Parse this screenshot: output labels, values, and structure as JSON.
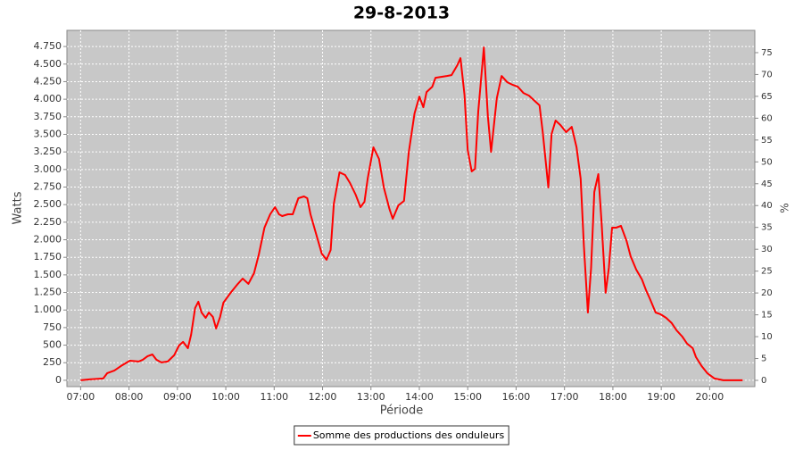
{
  "chart_data": {
    "type": "line",
    "title": "29-8-2013",
    "x_label": "Période",
    "y_label": "Watts",
    "y2_label": "%",
    "xlim": [
      403,
      1256
    ],
    "ylim": [
      -90,
      4980
    ],
    "y2lim": [
      -1.43,
      80.1
    ],
    "xticks": [
      {
        "value": 420,
        "label": "07:00"
      },
      {
        "value": 480,
        "label": "08:00"
      },
      {
        "value": 540,
        "label": "09:00"
      },
      {
        "value": 600,
        "label": "10:00"
      },
      {
        "value": 660,
        "label": "11:00"
      },
      {
        "value": 720,
        "label": "12:00"
      },
      {
        "value": 780,
        "label": "13:00"
      },
      {
        "value": 840,
        "label": "14:00"
      },
      {
        "value": 900,
        "label": "15:00"
      },
      {
        "value": 960,
        "label": "16:00"
      },
      {
        "value": 1020,
        "label": "17:00"
      },
      {
        "value": 1080,
        "label": "18:00"
      },
      {
        "value": 1140,
        "label": "19:00"
      },
      {
        "value": 1200,
        "label": "20:00"
      }
    ],
    "yticks": [
      0,
      250,
      500,
      750,
      {
        "value": 1000,
        "label": "1.000"
      },
      {
        "value": 1250,
        "label": "1.250"
      },
      {
        "value": 1500,
        "label": "1.500"
      },
      {
        "value": 1750,
        "label": "1.750"
      },
      {
        "value": 2000,
        "label": "2.000"
      },
      {
        "value": 2250,
        "label": "2.250"
      },
      {
        "value": 2500,
        "label": "2.500"
      },
      {
        "value": 2750,
        "label": "2.750"
      },
      {
        "value": 3000,
        "label": "3.000"
      },
      {
        "value": 3250,
        "label": "3.250"
      },
      {
        "value": 3500,
        "label": "3.500"
      },
      {
        "value": 3750,
        "label": "3.750"
      },
      {
        "value": 4000,
        "label": "4.000"
      },
      {
        "value": 4250,
        "label": "4.250"
      },
      {
        "value": 4500,
        "label": "4.500"
      },
      {
        "value": 4750,
        "label": "4.750"
      }
    ],
    "y2ticks": [
      0,
      5,
      10,
      15,
      20,
      25,
      30,
      35,
      40,
      45,
      50,
      55,
      60,
      65,
      70,
      75
    ],
    "grid": true,
    "x": [
      420,
      431,
      448,
      453,
      462,
      470,
      481,
      492,
      497,
      503,
      509,
      514,
      520,
      528,
      536,
      542,
      547,
      553,
      557,
      562,
      566,
      570,
      575,
      579,
      584,
      588,
      593,
      597,
      606,
      615,
      621,
      628,
      635,
      641,
      648,
      655,
      661,
      666,
      670,
      677,
      683,
      690,
      697,
      701,
      705,
      712,
      719,
      725,
      730,
      734,
      741,
      748,
      754,
      761,
      767,
      772,
      776,
      783,
      790,
      796,
      803,
      807,
      814,
      821,
      827,
      834,
      840,
      845,
      849,
      856,
      860,
      867,
      874,
      880,
      887,
      891,
      896,
      900,
      905,
      909,
      913,
      920,
      925,
      929,
      936,
      942,
      949,
      956,
      962,
      969,
      976,
      982,
      989,
      993,
      1000,
      1004,
      1009,
      1015,
      1022,
      1029,
      1035,
      1040,
      1044,
      1049,
      1053,
      1057,
      1062,
      1066,
      1071,
      1075,
      1079,
      1084,
      1090,
      1097,
      1102,
      1109,
      1116,
      1121,
      1126,
      1133,
      1139,
      1146,
      1153,
      1159,
      1166,
      1172,
      1179,
      1183,
      1190,
      1197,
      1206,
      1217,
      1241
    ],
    "series": [
      {
        "name": "Somme des productions des onduleurs",
        "color": "#ff0000",
        "values": [
          0,
          13,
          25,
          102,
          140,
          203,
          279,
          267,
          292,
          343,
          368,
          292,
          254,
          267,
          356,
          495,
          546,
          457,
          648,
          1029,
          1118,
          965,
          889,
          965,
          902,
          737,
          902,
          1105,
          1245,
          1372,
          1448,
          1372,
          1524,
          1791,
          2172,
          2362,
          2464,
          2362,
          2337,
          2362,
          2362,
          2591,
          2616,
          2591,
          2362,
          2083,
          1803,
          1715,
          1854,
          2515,
          2959,
          2921,
          2807,
          2642,
          2464,
          2540,
          2870,
          3315,
          3150,
          2743,
          2438,
          2299,
          2489,
          2553,
          3251,
          3797,
          4039,
          3886,
          4102,
          4178,
          4305,
          4318,
          4331,
          4343,
          4483,
          4585,
          4064,
          3277,
          2972,
          3010,
          3823,
          4737,
          3759,
          3251,
          4013,
          4331,
          4242,
          4204,
          4178,
          4089,
          4051,
          3988,
          3912,
          3531,
          2743,
          3505,
          3696,
          3632,
          3531,
          3607,
          3315,
          2870,
          1918,
          965,
          1600,
          2680,
          2934,
          2235,
          1245,
          1600,
          2172,
          2172,
          2197,
          1981,
          1765,
          1575,
          1435,
          1283,
          1156,
          965,
          940,
          889,
          813,
          711,
          622,
          521,
          457,
          330,
          203,
          102,
          25,
          0,
          0
        ]
      }
    ],
    "legend": "bottom"
  }
}
